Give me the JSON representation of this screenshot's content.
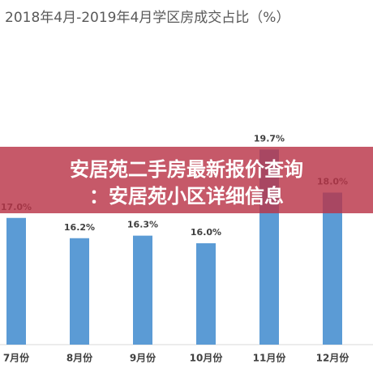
{
  "chart_data": {
    "type": "bar",
    "title": "2018年4月-2019年4月学区房成交占比（%）",
    "categories": [
      "7月份",
      "8月份",
      "9月份",
      "10月份",
      "11月份",
      "12月份"
    ],
    "values": [
      17.0,
      16.2,
      16.3,
      16.0,
      19.7,
      18.0
    ],
    "value_labels": [
      "17.0%",
      "16.2%",
      "16.3%",
      "16.0%",
      "19.7%",
      "18.0%"
    ],
    "color": "#5b9bd5",
    "ylim": [
      12,
      24
    ]
  },
  "banner": {
    "lines": [
      "安居苑二手房最新报价查询",
      "：安居苑小区详细信息"
    ]
  }
}
